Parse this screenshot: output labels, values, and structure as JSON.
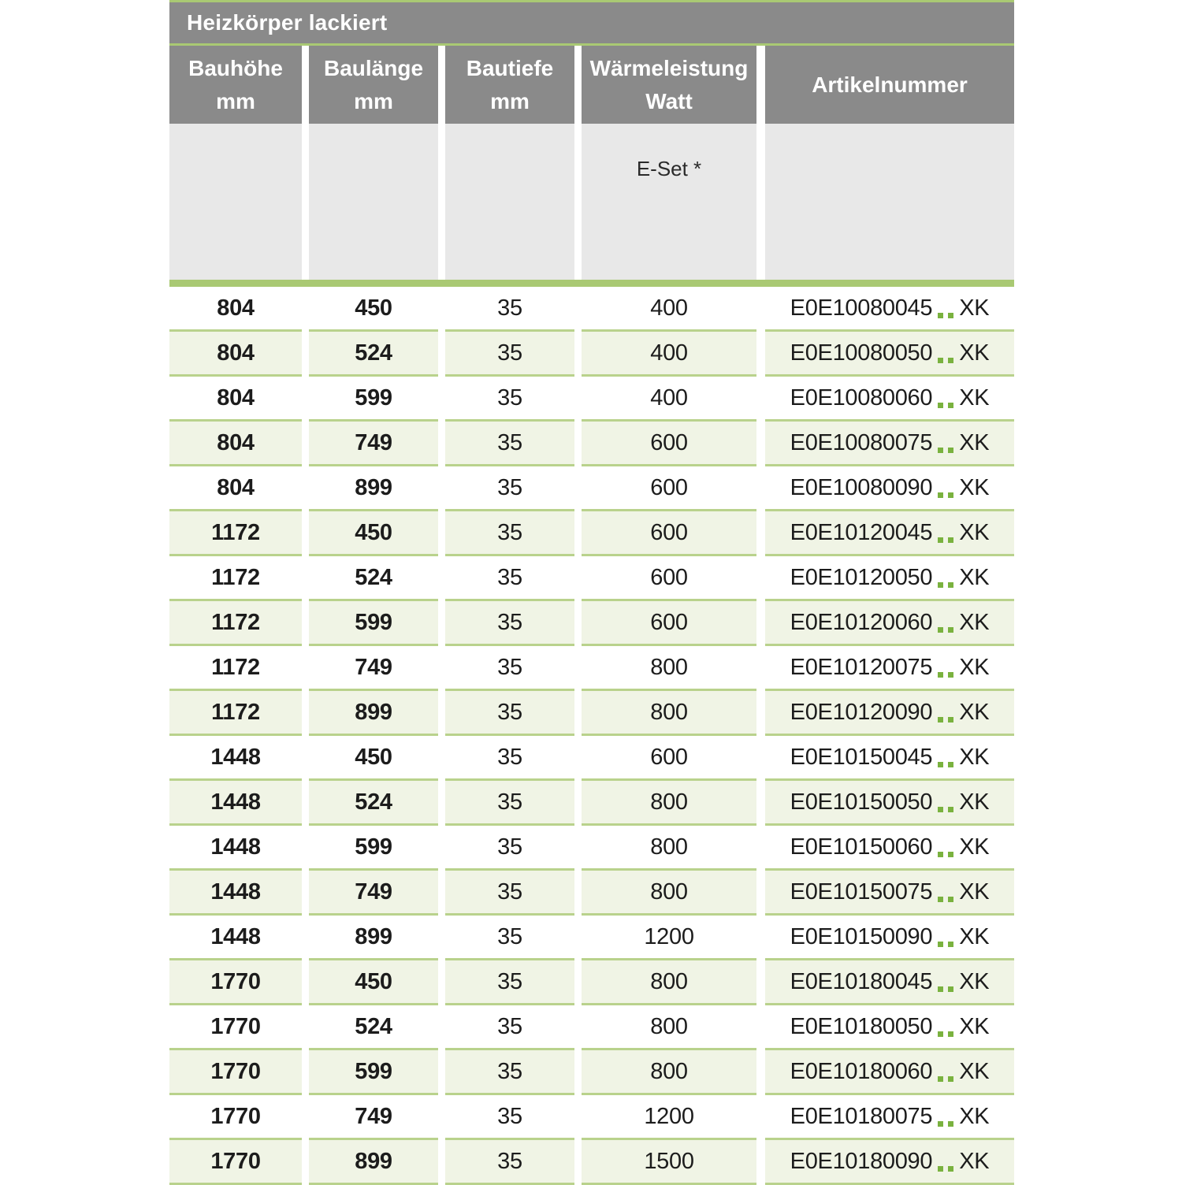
{
  "table": {
    "title": "Heizkörper lackiert",
    "columns": [
      {
        "label": "Bauhöhe",
        "unit": "mm"
      },
      {
        "label": "Baulänge",
        "unit": "mm"
      },
      {
        "label": "Bautiefe",
        "unit": "mm"
      },
      {
        "label": "Wärmeleistung",
        "unit": "Watt"
      },
      {
        "label": "Artikelnummer",
        "unit": ""
      }
    ],
    "subheader": {
      "eset_label": "E-Set *"
    },
    "rows": [
      {
        "bauhoehe": "804",
        "baulaenge": "450",
        "bautiefe": "35",
        "watt": "400",
        "artikel_prefix": "E0E10080045",
        "artikel_dots": "..",
        "artikel_suffix": "XK"
      },
      {
        "bauhoehe": "804",
        "baulaenge": "524",
        "bautiefe": "35",
        "watt": "400",
        "artikel_prefix": "E0E10080050",
        "artikel_dots": "..",
        "artikel_suffix": "XK"
      },
      {
        "bauhoehe": "804",
        "baulaenge": "599",
        "bautiefe": "35",
        "watt": "400",
        "artikel_prefix": "E0E10080060",
        "artikel_dots": "..",
        "artikel_suffix": "XK"
      },
      {
        "bauhoehe": "804",
        "baulaenge": "749",
        "bautiefe": "35",
        "watt": "600",
        "artikel_prefix": "E0E10080075",
        "artikel_dots": "..",
        "artikel_suffix": "XK"
      },
      {
        "bauhoehe": "804",
        "baulaenge": "899",
        "bautiefe": "35",
        "watt": "600",
        "artikel_prefix": "E0E10080090",
        "artikel_dots": "..",
        "artikel_suffix": "XK"
      },
      {
        "bauhoehe": "1172",
        "baulaenge": "450",
        "bautiefe": "35",
        "watt": "600",
        "artikel_prefix": "E0E10120045",
        "artikel_dots": "..",
        "artikel_suffix": "XK"
      },
      {
        "bauhoehe": "1172",
        "baulaenge": "524",
        "bautiefe": "35",
        "watt": "600",
        "artikel_prefix": "E0E10120050",
        "artikel_dots": "..",
        "artikel_suffix": "XK"
      },
      {
        "bauhoehe": "1172",
        "baulaenge": "599",
        "bautiefe": "35",
        "watt": "600",
        "artikel_prefix": "E0E10120060",
        "artikel_dots": "..",
        "artikel_suffix": "XK"
      },
      {
        "bauhoehe": "1172",
        "baulaenge": "749",
        "bautiefe": "35",
        "watt": "800",
        "artikel_prefix": "E0E10120075",
        "artikel_dots": "..",
        "artikel_suffix": "XK"
      },
      {
        "bauhoehe": "1172",
        "baulaenge": "899",
        "bautiefe": "35",
        "watt": "800",
        "artikel_prefix": "E0E10120090",
        "artikel_dots": "..",
        "artikel_suffix": "XK"
      },
      {
        "bauhoehe": "1448",
        "baulaenge": "450",
        "bautiefe": "35",
        "watt": "600",
        "artikel_prefix": "E0E10150045",
        "artikel_dots": "..",
        "artikel_suffix": "XK"
      },
      {
        "bauhoehe": "1448",
        "baulaenge": "524",
        "bautiefe": "35",
        "watt": "800",
        "artikel_prefix": "E0E10150050",
        "artikel_dots": "..",
        "artikel_suffix": "XK"
      },
      {
        "bauhoehe": "1448",
        "baulaenge": "599",
        "bautiefe": "35",
        "watt": "800",
        "artikel_prefix": "E0E10150060",
        "artikel_dots": "..",
        "artikel_suffix": "XK"
      },
      {
        "bauhoehe": "1448",
        "baulaenge": "749",
        "bautiefe": "35",
        "watt": "800",
        "artikel_prefix": "E0E10150075",
        "artikel_dots": "..",
        "artikel_suffix": "XK"
      },
      {
        "bauhoehe": "1448",
        "baulaenge": "899",
        "bautiefe": "35",
        "watt": "1200",
        "artikel_prefix": "E0E10150090",
        "artikel_dots": "..",
        "artikel_suffix": "XK"
      },
      {
        "bauhoehe": "1770",
        "baulaenge": "450",
        "bautiefe": "35",
        "watt": "800",
        "artikel_prefix": "E0E10180045",
        "artikel_dots": "..",
        "artikel_suffix": "XK"
      },
      {
        "bauhoehe": "1770",
        "baulaenge": "524",
        "bautiefe": "35",
        "watt": "800",
        "artikel_prefix": "E0E10180050",
        "artikel_dots": "..",
        "artikel_suffix": "XK"
      },
      {
        "bauhoehe": "1770",
        "baulaenge": "599",
        "bautiefe": "35",
        "watt": "800",
        "artikel_prefix": "E0E10180060",
        "artikel_dots": "..",
        "artikel_suffix": "XK"
      },
      {
        "bauhoehe": "1770",
        "baulaenge": "749",
        "bautiefe": "35",
        "watt": "1200",
        "artikel_prefix": "E0E10180075",
        "artikel_dots": "..",
        "artikel_suffix": "XK"
      },
      {
        "bauhoehe": "1770",
        "baulaenge": "899",
        "bautiefe": "35",
        "watt": "1500",
        "artikel_prefix": "E0E10180090",
        "artikel_dots": "..",
        "artikel_suffix": "XK"
      }
    ],
    "colors": {
      "accent_green": "#a9c973",
      "separator_green": "#b9d28c",
      "row_tint_green": "#f0f4e5",
      "dot_green": "#7ab23f",
      "header_gray": "#8a8a8a",
      "subheader_gray": "#e8e8e8"
    }
  }
}
